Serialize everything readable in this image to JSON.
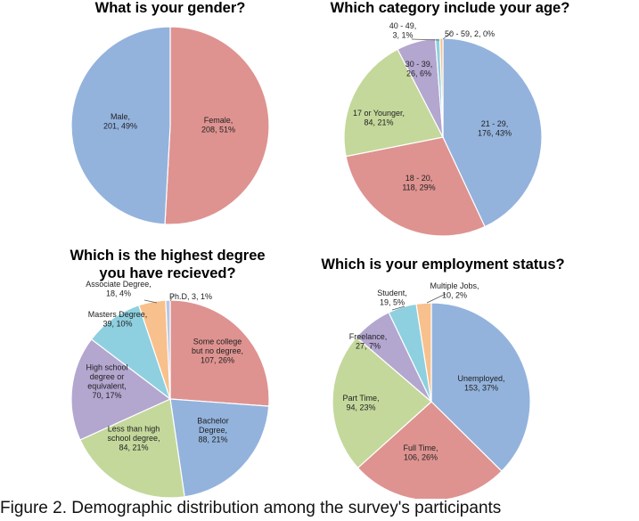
{
  "caption": "Figure 2. Demographic distribution among the survey's participants",
  "palette": [
    "#93b3dd",
    "#de9390",
    "#c4d89b",
    "#b3a6cf",
    "#8ed0df",
    "#f8c08d",
    "#b9c6e2"
  ],
  "chart_data": [
    {
      "type": "pie",
      "title_lines": [
        "What is your gender?"
      ],
      "slices": [
        {
          "label": [
            "Female,",
            "208, 51%"
          ],
          "value": 208,
          "percent": 51,
          "color": "#de9390"
        },
        {
          "label": [
            "Male,",
            "201, 49%"
          ],
          "value": 201,
          "percent": 49,
          "color": "#93b3dd"
        }
      ]
    },
    {
      "type": "pie",
      "title_lines": [
        "Which category include your age?"
      ],
      "slices": [
        {
          "label": [
            "21 - 29,",
            "176, 43%"
          ],
          "value": 176,
          "percent": 43,
          "color": "#93b3dd"
        },
        {
          "label": [
            "18 - 20,",
            "118, 29%"
          ],
          "value": 118,
          "percent": 29,
          "color": "#de9390"
        },
        {
          "label": [
            "17 or Younger,",
            "84, 21%"
          ],
          "value": 84,
          "percent": 21,
          "color": "#c4d89b"
        },
        {
          "label": [
            "30 - 39,",
            "26, 6%"
          ],
          "value": 26,
          "percent": 6,
          "color": "#b3a6cf"
        },
        {
          "label": [
            "40 - 49,",
            "3, 1%"
          ],
          "value": 3,
          "percent": 1,
          "color": "#8ed0df"
        },
        {
          "label": [
            "50 - 59, 2, 0%"
          ],
          "value": 2,
          "percent": 0,
          "color": "#f8c08d"
        }
      ]
    },
    {
      "type": "pie",
      "title_lines": [
        "Which is the highest degree",
        "you have recieved?"
      ],
      "slices": [
        {
          "label": [
            "Some college",
            "but no degree,",
            "107, 26%"
          ],
          "value": 107,
          "percent": 26,
          "color": "#de9390"
        },
        {
          "label": [
            "Bachelor",
            "Degree,",
            "88, 21%"
          ],
          "value": 88,
          "percent": 21,
          "color": "#93b3dd"
        },
        {
          "label": [
            "Less than high",
            "school degree,",
            "84, 21%"
          ],
          "value": 84,
          "percent": 21,
          "color": "#c4d89b"
        },
        {
          "label": [
            "High school",
            "degree or",
            "equivalent,",
            "70, 17%"
          ],
          "value": 70,
          "percent": 17,
          "color": "#b3a6cf"
        },
        {
          "label": [
            "Masters Degree,",
            "39, 10%"
          ],
          "value": 39,
          "percent": 10,
          "color": "#8ed0df"
        },
        {
          "label": [
            "Associate Degree,",
            "18, 4%"
          ],
          "value": 18,
          "percent": 4,
          "color": "#f8c08d"
        },
        {
          "label": [
            "Ph.D, 3, 1%"
          ],
          "value": 3,
          "percent": 1,
          "color": "#b9c6e2"
        }
      ]
    },
    {
      "type": "pie",
      "title_lines": [
        "Which is your employment status?"
      ],
      "slices": [
        {
          "label": [
            "Unemployed,",
            "153, 37%"
          ],
          "value": 153,
          "percent": 37,
          "color": "#93b3dd"
        },
        {
          "label": [
            "Full Time,",
            "106, 26%"
          ],
          "value": 106,
          "percent": 26,
          "color": "#de9390"
        },
        {
          "label": [
            "Part Time,",
            "94, 23%"
          ],
          "value": 94,
          "percent": 23,
          "color": "#c4d89b"
        },
        {
          "label": [
            "Freelance,",
            "27, 7%"
          ],
          "value": 27,
          "percent": 7,
          "color": "#b3a6cf"
        },
        {
          "label": [
            "Student,",
            "19, 5%"
          ],
          "value": 19,
          "percent": 5,
          "color": "#8ed0df"
        },
        {
          "label": [
            "Multiple Jobs,",
            "10, 2%"
          ],
          "value": 10,
          "percent": 2,
          "color": "#f8c08d"
        }
      ]
    }
  ]
}
